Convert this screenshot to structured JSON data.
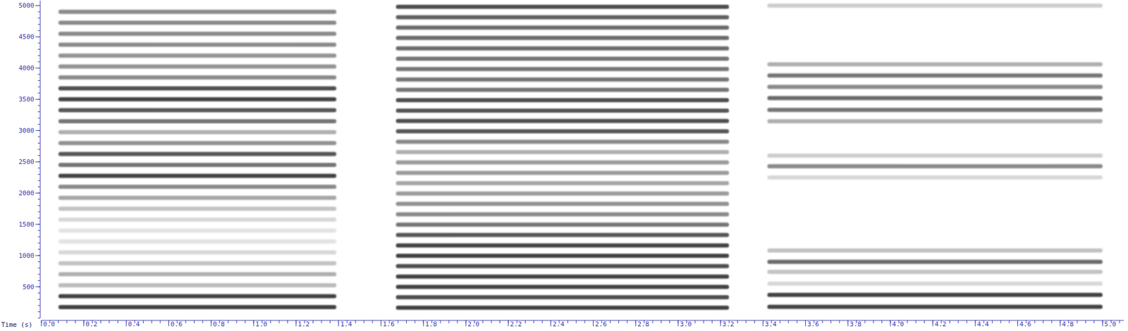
{
  "chart_data": {
    "type": "spectrogram",
    "x_label": "Time (s)",
    "xlim": [
      0,
      5.1
    ],
    "ylim": [
      0,
      5080
    ],
    "xticks": [
      {
        "value": 0,
        "label": "0.0"
      },
      {
        "value": 0.2,
        "label": "0.2"
      },
      {
        "value": 0.4,
        "label": "0.4"
      },
      {
        "value": 0.6,
        "label": "0.6"
      },
      {
        "value": 0.8,
        "label": "0.8"
      },
      {
        "value": 1,
        "label": "1.0"
      },
      {
        "value": 1.2,
        "label": "1.2"
      },
      {
        "value": 1.4,
        "label": "1.4"
      },
      {
        "value": 1.6,
        "label": "1.6"
      },
      {
        "value": 1.8,
        "label": "1.8"
      },
      {
        "value": 2,
        "label": "2.0"
      },
      {
        "value": 2.2,
        "label": "2.2"
      },
      {
        "value": 2.4,
        "label": "2.4"
      },
      {
        "value": 2.6,
        "label": "2.6"
      },
      {
        "value": 2.8,
        "label": "2.8"
      },
      {
        "value": 3,
        "label": "3.0"
      },
      {
        "value": 3.2,
        "label": "3.2"
      },
      {
        "value": 3.4,
        "label": "3.4"
      },
      {
        "value": 3.6,
        "label": "3.6"
      },
      {
        "value": 3.8,
        "label": "3.8"
      },
      {
        "value": 4,
        "label": "4.0"
      },
      {
        "value": 4.2,
        "label": "4.2"
      },
      {
        "value": 4.4,
        "label": "4.4"
      },
      {
        "value": 4.6,
        "label": "4.6"
      },
      {
        "value": 4.8,
        "label": "4.8"
      },
      {
        "value": 5,
        "label": "5.0"
      }
    ],
    "yticks": [
      500,
      1000,
      1500,
      2000,
      2500,
      3000,
      3500,
      4000,
      4500,
      5000
    ],
    "color": "#3a3a3a",
    "segments": [
      {
        "start": 0.09,
        "end": 1.38,
        "harmonics": [
          {
            "freq": 175,
            "level": 0.95
          },
          {
            "freq": 350,
            "level": 0.95
          },
          {
            "freq": 525,
            "level": 0.35
          },
          {
            "freq": 700,
            "level": 0.4
          },
          {
            "freq": 875,
            "level": 0.3
          },
          {
            "freq": 1050,
            "level": 0.2
          },
          {
            "freq": 1225,
            "level": 0.15
          },
          {
            "freq": 1400,
            "level": 0.15
          },
          {
            "freq": 1575,
            "level": 0.2
          },
          {
            "freq": 1750,
            "level": 0.3
          },
          {
            "freq": 1925,
            "level": 0.45
          },
          {
            "freq": 2100,
            "level": 0.6
          },
          {
            "freq": 2275,
            "level": 0.95
          },
          {
            "freq": 2450,
            "level": 0.7
          },
          {
            "freq": 2625,
            "level": 0.85
          },
          {
            "freq": 2800,
            "level": 0.55
          },
          {
            "freq": 2975,
            "level": 0.4
          },
          {
            "freq": 3150,
            "level": 0.7
          },
          {
            "freq": 3325,
            "level": 0.85
          },
          {
            "freq": 3500,
            "level": 0.95
          },
          {
            "freq": 3675,
            "level": 0.9
          },
          {
            "freq": 3850,
            "level": 0.6
          },
          {
            "freq": 4025,
            "level": 0.55
          },
          {
            "freq": 4200,
            "level": 0.55
          },
          {
            "freq": 4375,
            "level": 0.6
          },
          {
            "freq": 4550,
            "level": 0.6
          },
          {
            "freq": 4725,
            "level": 0.6
          },
          {
            "freq": 4900,
            "level": 0.6
          }
        ]
      },
      {
        "start": 1.68,
        "end": 3.23,
        "harmonics": [
          {
            "freq": 166,
            "level": 0.95
          },
          {
            "freq": 332,
            "level": 0.9
          },
          {
            "freq": 498,
            "level": 0.95
          },
          {
            "freq": 664,
            "level": 0.95
          },
          {
            "freq": 830,
            "level": 0.9
          },
          {
            "freq": 996,
            "level": 0.95
          },
          {
            "freq": 1162,
            "level": 0.95
          },
          {
            "freq": 1328,
            "level": 0.85
          },
          {
            "freq": 1494,
            "level": 0.7
          },
          {
            "freq": 1660,
            "level": 0.6
          },
          {
            "freq": 1826,
            "level": 0.55
          },
          {
            "freq": 1992,
            "level": 0.5
          },
          {
            "freq": 2158,
            "level": 0.45
          },
          {
            "freq": 2324,
            "level": 0.5
          },
          {
            "freq": 2490,
            "level": 0.5
          },
          {
            "freq": 2656,
            "level": 0.4
          },
          {
            "freq": 2822,
            "level": 0.6
          },
          {
            "freq": 2988,
            "level": 0.85
          },
          {
            "freq": 3154,
            "level": 0.9
          },
          {
            "freq": 3320,
            "level": 0.85
          },
          {
            "freq": 3486,
            "level": 0.9
          },
          {
            "freq": 3652,
            "level": 0.7
          },
          {
            "freq": 3818,
            "level": 0.7
          },
          {
            "freq": 3984,
            "level": 0.7
          },
          {
            "freq": 4150,
            "level": 0.7
          },
          {
            "freq": 4316,
            "level": 0.75
          },
          {
            "freq": 4482,
            "level": 0.75
          },
          {
            "freq": 4648,
            "level": 0.75
          },
          {
            "freq": 4814,
            "level": 0.8
          },
          {
            "freq": 4980,
            "level": 0.9
          }
        ]
      },
      {
        "start": 3.43,
        "end": 4.99,
        "harmonics": [
          {
            "freq": 180,
            "level": 0.95
          },
          {
            "freq": 370,
            "level": 0.95
          },
          {
            "freq": 550,
            "level": 0.2
          },
          {
            "freq": 740,
            "level": 0.3
          },
          {
            "freq": 900,
            "level": 0.75
          },
          {
            "freq": 1080,
            "level": 0.3
          },
          {
            "freq": 2250,
            "level": 0.2
          },
          {
            "freq": 2430,
            "level": 0.6
          },
          {
            "freq": 2600,
            "level": 0.25
          },
          {
            "freq": 3150,
            "level": 0.4
          },
          {
            "freq": 3330,
            "level": 0.7
          },
          {
            "freq": 3520,
            "level": 0.75
          },
          {
            "freq": 3700,
            "level": 0.6
          },
          {
            "freq": 3880,
            "level": 0.7
          },
          {
            "freq": 4060,
            "level": 0.4
          },
          {
            "freq": 5000,
            "level": 0.25
          }
        ]
      }
    ]
  }
}
